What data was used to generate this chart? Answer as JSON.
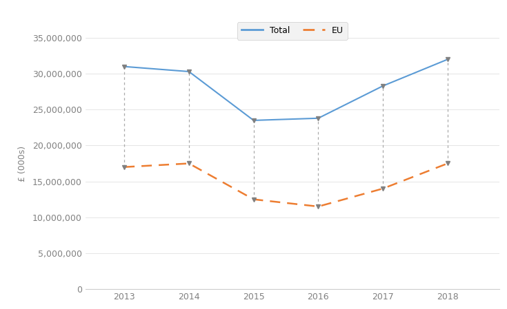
{
  "years": [
    2013,
    2014,
    2015,
    2016,
    2017,
    2018
  ],
  "total": [
    31000000,
    30300000,
    23500000,
    23800000,
    28300000,
    32000000
  ],
  "eu": [
    17000000,
    17500000,
    12500000,
    11500000,
    14000000,
    17500000
  ],
  "total_color": "#5B9BD5",
  "eu_color": "#ED7D31",
  "background_color": "#FFFFFF",
  "ylabel": "£ (000s)",
  "ylim": [
    0,
    35000000
  ],
  "yticks": [
    0,
    5000000,
    10000000,
    15000000,
    20000000,
    25000000,
    30000000,
    35000000
  ],
  "legend_total": "Total",
  "legend_eu": "EU",
  "dashed_line_color": "#AAAAAA",
  "grid_color": "#E0E0E0",
  "marker_color": "#808080",
  "tick_color": "#808080",
  "label_color": "#808080"
}
